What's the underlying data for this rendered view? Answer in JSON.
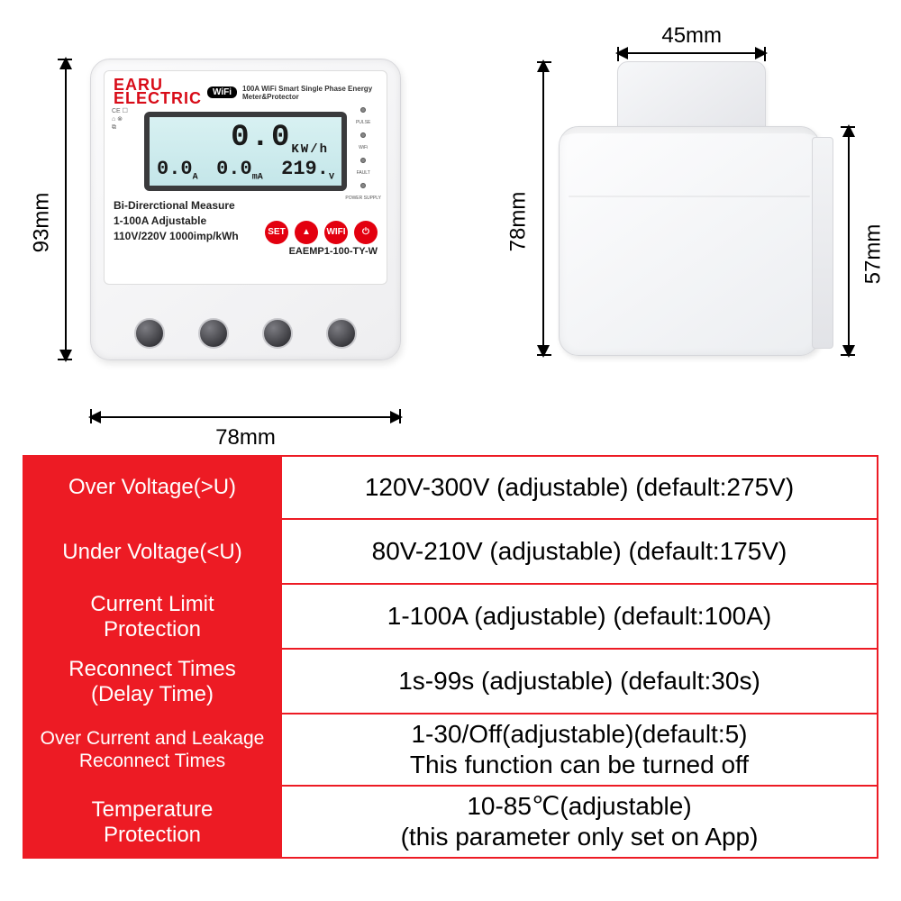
{
  "colors": {
    "accent": "#ed1b24",
    "lcd": "#cde9eb",
    "device": "#f2f2f4"
  },
  "front": {
    "dim_h": "93mm",
    "dim_w": "78mm",
    "brand": "EARU",
    "brand_sub": "ELECTRIC",
    "wifi_badge": "WiFi",
    "title": "100A WiFi Smart Single Phase Energy Meter&Protector",
    "lcd_main": "0.0",
    "lcd_main_unit": "KW/h",
    "lcd_a": "0.0",
    "lcd_a_unit": "A",
    "lcd_ma": "0.0",
    "lcd_ma_unit": "mA",
    "lcd_v": "219.",
    "lcd_v_unit": "V",
    "led1": "PULSE",
    "led2": "WiFi",
    "led3": "FAULT",
    "led4": "POWER SUPPLY",
    "info1": "Bi-Direrctional Measure",
    "info2": "1-100A Adjustable",
    "info3": "110V/220V 1000imp/kWh",
    "btn_set": "SET",
    "btn_up": "▲",
    "btn_wifi": "WIFI",
    "btn_pwr": "⏻",
    "model": "EAEMP1-100-TY-W"
  },
  "side": {
    "dim_top": "45mm",
    "dim_left": "78mm",
    "dim_right": "57mm"
  },
  "specs": [
    {
      "label": "Over Voltage(>U)",
      "value": "120V-300V (adjustable) (default:275V)"
    },
    {
      "label": "Under Voltage(<U)",
      "value": "80V-210V (adjustable) (default:175V)"
    },
    {
      "label": "Current Limit\nProtection",
      "value": "1-100A (adjustable) (default:100A)"
    },
    {
      "label": "Reconnect Times\n(Delay Time)",
      "value": "1s-99s (adjustable) (default:30s)"
    },
    {
      "label": "Over Current and Leakage\nReconnect Times",
      "value": "1-30/Off(adjustable)(default:5)\nThis function can be turned off"
    },
    {
      "label": "Temperature\nProtection",
      "value": "10-85℃(adjustable)\n(this parameter only set on App)"
    }
  ]
}
